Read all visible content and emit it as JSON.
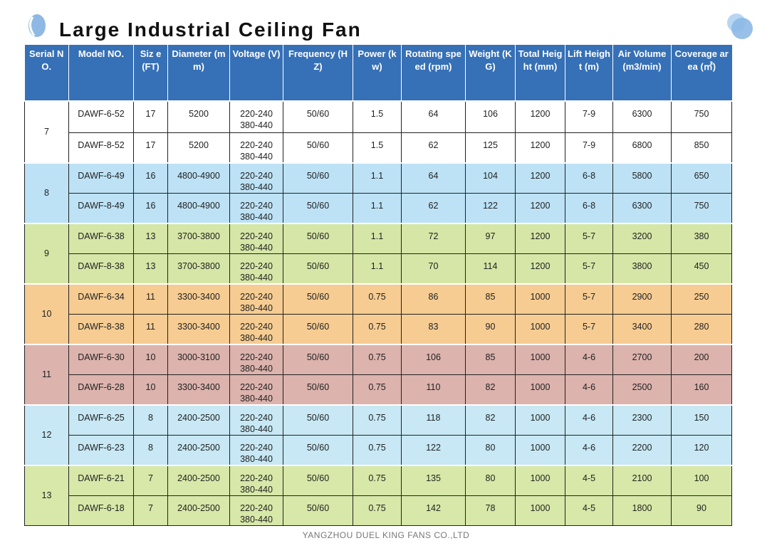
{
  "title": "Large Industrial Ceiling Fan",
  "footer": "YANGZHOU DUEL KING FANS CO.,LTD",
  "colors": {
    "header": "#3670b6",
    "groups": [
      "#ffffff",
      "#bde2f6",
      "#d5e6a6",
      "#f6cc92",
      "#dcb3ad",
      "#c7e8f4",
      "#d7e8a8"
    ]
  },
  "headers": [
    "Serial NO.",
    "Model NO.",
    "Siz e (FT)",
    "Diameter (mm)",
    "Voltage (V)",
    "Frequency (HZ)",
    "Power (kw)",
    "Rotating speed (rpm)",
    "Weight (KG)",
    "Total Height (mm)",
    "Lift Height (m)",
    "Air Volume (m3/min)",
    "Coverage area (㎡)"
  ],
  "groups": [
    {
      "serial": "7",
      "rows": [
        {
          "model": "DAWF-6-52",
          "size": "17",
          "diameter": "5200",
          "voltage1": "220-240",
          "voltage2": "380-440",
          "frequency": "50/60",
          "power": "1.5",
          "speed": "64",
          "weight": "106",
          "total_height": "1200",
          "lift_height": "7-9",
          "air_volume": "6300",
          "coverage": "750"
        },
        {
          "model": "DAWF-8-52",
          "size": "17",
          "diameter": "5200",
          "voltage1": "220-240",
          "voltage2": "380-440",
          "frequency": "50/60",
          "power": "1.5",
          "speed": "62",
          "weight": "125",
          "total_height": "1200",
          "lift_height": "7-9",
          "air_volume": "6800",
          "coverage": "850"
        }
      ]
    },
    {
      "serial": "8",
      "rows": [
        {
          "model": "DAWF-6-49",
          "size": "16",
          "diameter": "4800-4900",
          "voltage1": "220-240",
          "voltage2": "380-440",
          "frequency": "50/60",
          "power": "1.1",
          "speed": "64",
          "weight": "104",
          "total_height": "1200",
          "lift_height": "6-8",
          "air_volume": "5800",
          "coverage": "650"
        },
        {
          "model": "DAWF-8-49",
          "size": "16",
          "diameter": "4800-4900",
          "voltage1": "220-240",
          "voltage2": "380-440",
          "frequency": "50/60",
          "power": "1.1",
          "speed": "62",
          "weight": "122",
          "total_height": "1200",
          "lift_height": "6-8",
          "air_volume": "6300",
          "coverage": "750"
        }
      ]
    },
    {
      "serial": "9",
      "rows": [
        {
          "model": "DAWF-6-38",
          "size": "13",
          "diameter": "3700-3800",
          "voltage1": "220-240",
          "voltage2": "380-440",
          "frequency": "50/60",
          "power": "1.1",
          "speed": "72",
          "weight": "97",
          "total_height": "1200",
          "lift_height": "5-7",
          "air_volume": "3200",
          "coverage": "380"
        },
        {
          "model": "DAWF-8-38",
          "size": "13",
          "diameter": "3700-3800",
          "voltage1": "220-240",
          "voltage2": "380-440",
          "frequency": "50/60",
          "power": "1.1",
          "speed": "70",
          "weight": "114",
          "total_height": "1200",
          "lift_height": "5-7",
          "air_volume": "3800",
          "coverage": "450"
        }
      ]
    },
    {
      "serial": "10",
      "rows": [
        {
          "model": "DAWF-6-34",
          "size": "11",
          "diameter": "3300-3400",
          "voltage1": "220-240",
          "voltage2": "380-440",
          "frequency": "50/60",
          "power": "0.75",
          "speed": "86",
          "weight": "85",
          "total_height": "1000",
          "lift_height": "5-7",
          "air_volume": "2900",
          "coverage": "250"
        },
        {
          "model": "DAWF-8-38",
          "size": "11",
          "diameter": "3300-3400",
          "voltage1": "220-240",
          "voltage2": "380-440",
          "frequency": "50/60",
          "power": "0.75",
          "speed": "83",
          "weight": "90",
          "total_height": "1000",
          "lift_height": "5-7",
          "air_volume": "3400",
          "coverage": "280"
        }
      ]
    },
    {
      "serial": "11",
      "rows": [
        {
          "model": "DAWF-6-30",
          "size": "10",
          "diameter": "3000-3100",
          "voltage1": "220-240",
          "voltage2": "380-440",
          "frequency": "50/60",
          "power": "0.75",
          "speed": "106",
          "weight": "85",
          "total_height": "1000",
          "lift_height": "4-6",
          "air_volume": "2700",
          "coverage": "200"
        },
        {
          "model": "DAWF-6-28",
          "size": "10",
          "diameter": "3300-3400",
          "voltage1": "220-240",
          "voltage2": "380-440",
          "frequency": "50/60",
          "power": "0.75",
          "speed": "110",
          "weight": "82",
          "total_height": "1000",
          "lift_height": "4-6",
          "air_volume": "2500",
          "coverage": "160"
        }
      ]
    },
    {
      "serial": "12",
      "rows": [
        {
          "model": "DAWF-6-25",
          "size": "8",
          "diameter": "2400-2500",
          "voltage1": "220-240",
          "voltage2": "380-440",
          "frequency": "50/60",
          "power": "0.75",
          "speed": "118",
          "weight": "82",
          "total_height": "1000",
          "lift_height": "4-6",
          "air_volume": "2300",
          "coverage": "150"
        },
        {
          "model": "DAWF-6-23",
          "size": "8",
          "diameter": "2400-2500",
          "voltage1": "220-240",
          "voltage2": "380-440",
          "frequency": "50/60",
          "power": "0.75",
          "speed": "122",
          "weight": "80",
          "total_height": "1000",
          "lift_height": "4-6",
          "air_volume": "2200",
          "coverage": "120"
        }
      ]
    },
    {
      "serial": "13",
      "rows": [
        {
          "model": "DAWF-6-21",
          "size": "7",
          "diameter": "2400-2500",
          "voltage1": "220-240",
          "voltage2": "380-440",
          "frequency": "50/60",
          "power": "0.75",
          "speed": "135",
          "weight": "80",
          "total_height": "1000",
          "lift_height": "4-5",
          "air_volume": "2100",
          "coverage": "100"
        },
        {
          "model": "DAWF-6-18",
          "size": "7",
          "diameter": "2400-2500",
          "voltage1": "220-240",
          "voltage2": "380-440",
          "frequency": "50/60",
          "power": "0.75",
          "speed": "142",
          "weight": "78",
          "total_height": "1000",
          "lift_height": "4-5",
          "air_volume": "1800",
          "coverage": "90"
        }
      ]
    }
  ]
}
